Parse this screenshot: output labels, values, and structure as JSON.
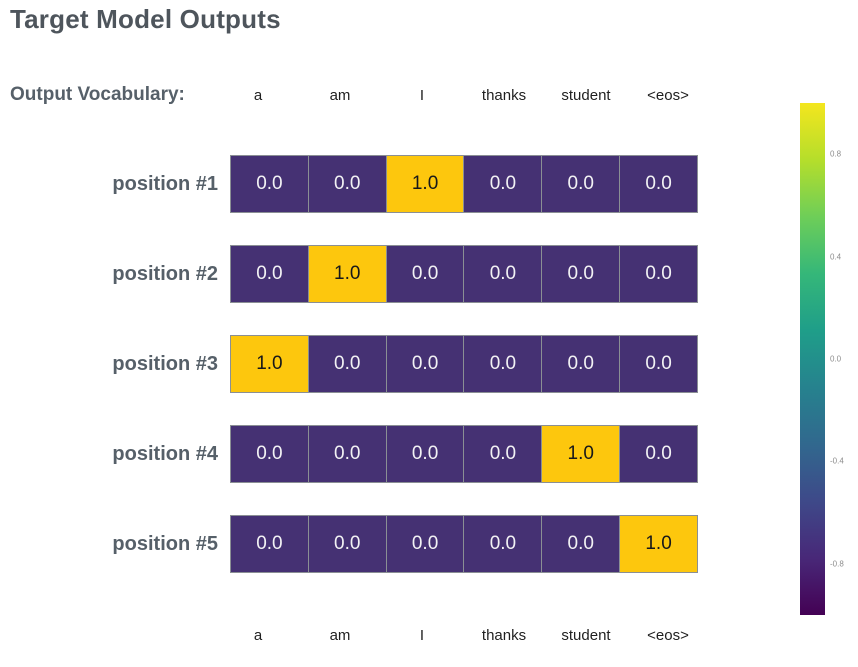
{
  "page": {
    "title": "Target Model Outputs",
    "vocab_heading": "Output Vocabulary:"
  },
  "colors": {
    "cell_low": "#453173",
    "cell_high": "#fdc70d",
    "cell_border": "#8a8f94",
    "text_on_low": "#f2f2f4",
    "text_on_high": "#17181a",
    "title_text": "#4e555c",
    "label_text": "#566069",
    "tick_text": "#8d8d8d",
    "viridis_stops": [
      "#f4e61e",
      "#b5de2b",
      "#6ece58",
      "#35b779",
      "#1f9e89",
      "#26828e",
      "#31688e",
      "#3e4989",
      "#482878",
      "#440154"
    ]
  },
  "chart_data": {
    "type": "heatmap",
    "title": "Target Model Outputs",
    "x_categories": [
      "a",
      "am",
      "I",
      "thanks",
      "student",
      "<eos>"
    ],
    "y_categories": [
      "position #1",
      "position #2",
      "position #3",
      "position #4",
      "position #5"
    ],
    "values": [
      [
        0.0,
        0.0,
        1.0,
        0.0,
        0.0,
        0.0
      ],
      [
        0.0,
        1.0,
        0.0,
        0.0,
        0.0,
        0.0
      ],
      [
        1.0,
        0.0,
        0.0,
        0.0,
        0.0,
        0.0
      ],
      [
        0.0,
        0.0,
        0.0,
        0.0,
        1.0,
        0.0
      ],
      [
        0.0,
        0.0,
        0.0,
        0.0,
        0.0,
        1.0
      ]
    ],
    "value_decimals": 1,
    "x_axis_shown": "top and bottom",
    "grid": false,
    "colorbar": {
      "position": "right",
      "min": -1.0,
      "max": 1.0,
      "ticks": [
        0.8,
        0.4,
        0.0,
        -0.4,
        -0.8
      ],
      "colormap": "viridis"
    }
  }
}
